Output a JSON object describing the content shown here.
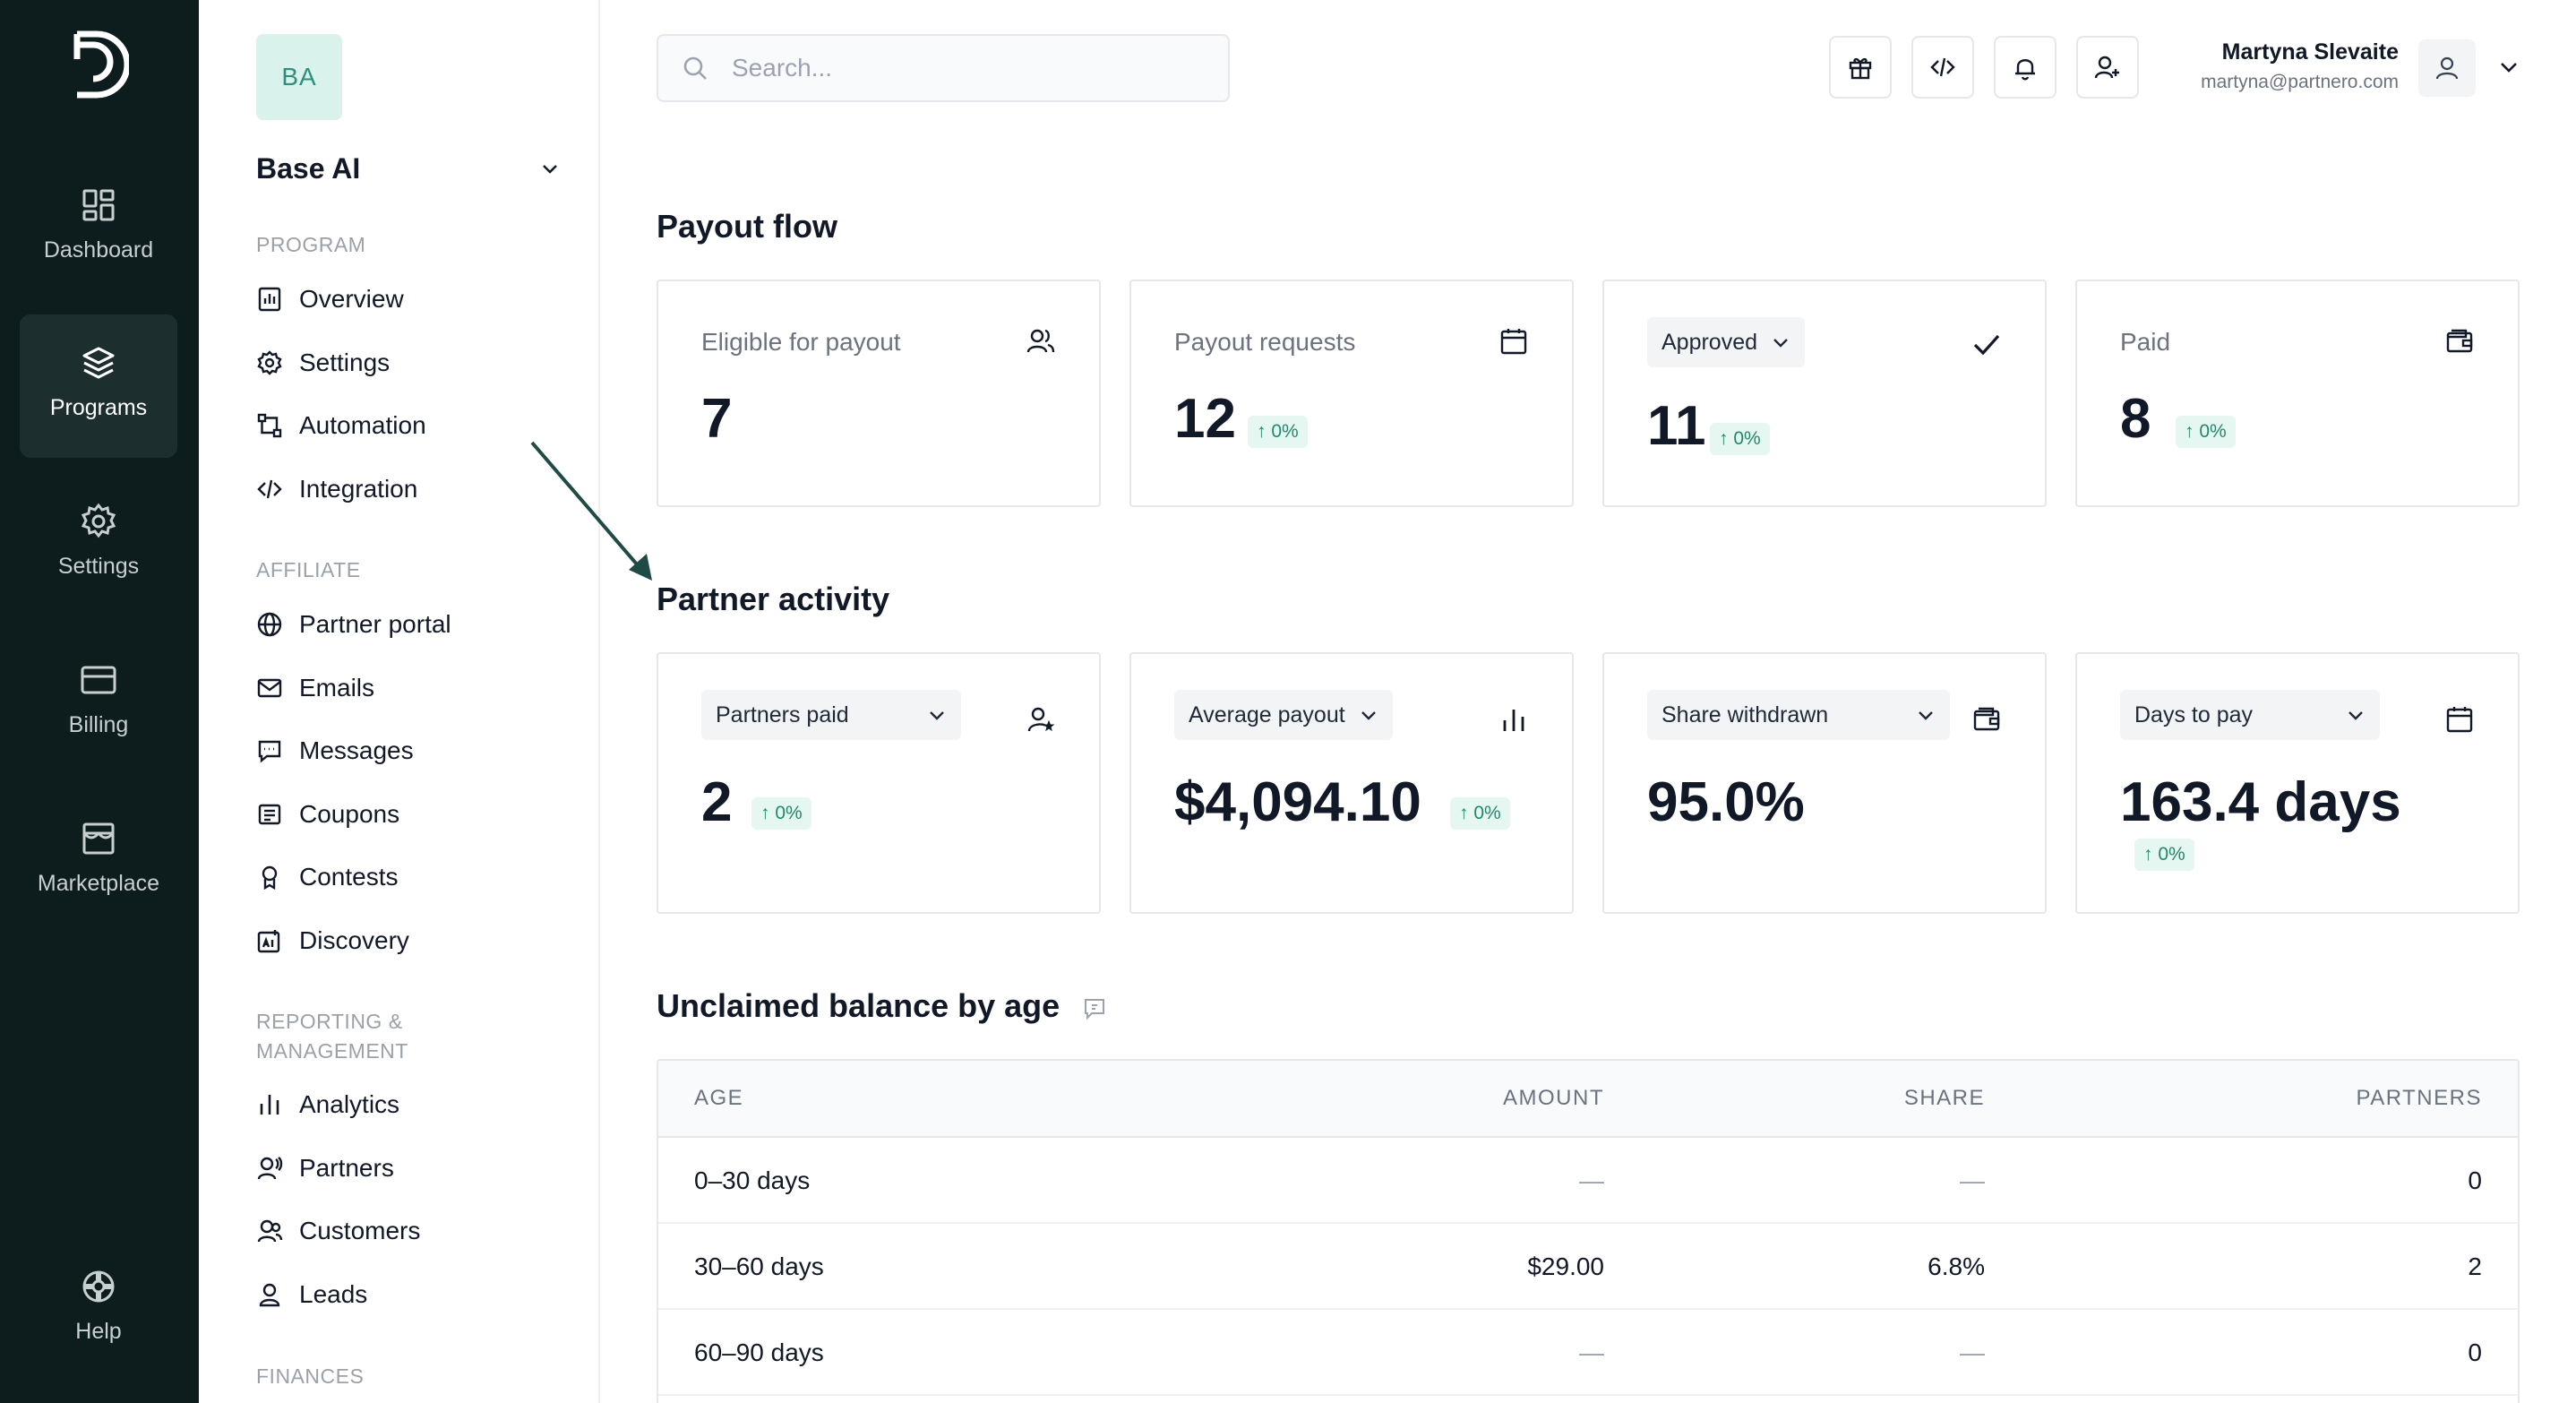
{
  "rail": {
    "items": [
      {
        "label": "Dashboard"
      },
      {
        "label": "Programs"
      },
      {
        "label": "Settings"
      },
      {
        "label": "Billing"
      },
      {
        "label": "Marketplace"
      }
    ],
    "help_label": "Help"
  },
  "sidebar": {
    "avatar_initials": "BA",
    "program_name": "Base AI",
    "sections": {
      "program": "PROGRAM",
      "affiliate": "AFFILIATE",
      "reporting_line1": "REPORTING &",
      "reporting_line2": "MANAGEMENT",
      "finances": "FINANCES"
    },
    "items": {
      "overview": "Overview",
      "settings": "Settings",
      "automation": "Automation",
      "integration": "Integration",
      "partner_portal": "Partner portal",
      "emails": "Emails",
      "messages": "Messages",
      "coupons": "Coupons",
      "contests": "Contests",
      "discovery": "Discovery",
      "analytics": "Analytics",
      "partners": "Partners",
      "customers": "Customers",
      "leads": "Leads"
    }
  },
  "header": {
    "search_placeholder": "Search...",
    "user_name": "Martyna Slevaite",
    "user_email": "martyna@partnero.com"
  },
  "payout_flow": {
    "title": "Payout flow",
    "cards": [
      {
        "label": "Eligible for payout",
        "value": "7",
        "icon": "users-icon"
      },
      {
        "label": "Payout requests",
        "value": "12",
        "change": "↑ 0%",
        "icon": "calendar-icon"
      },
      {
        "label": "Approved",
        "value": "11",
        "change": "↑ 0%",
        "icon": "check-icon"
      },
      {
        "label": "Paid",
        "value": "8",
        "change": "↑ 0%",
        "icon": "wallet-icon"
      }
    ]
  },
  "partner_activity": {
    "title": "Partner activity",
    "cards": [
      {
        "label": "Partners paid",
        "value": "2",
        "change": "↑ 0%",
        "icon": "user-star-icon"
      },
      {
        "label": "Average payout",
        "value": "$4,094.10",
        "change": "↑ 0%",
        "icon": "bar-chart-icon"
      },
      {
        "label": "Share withdrawn",
        "value": "95.0%",
        "icon": "wallet-icon"
      },
      {
        "label": "Days to pay",
        "value": "163.4 days",
        "change": "↑ 0%",
        "icon": "calendar-icon"
      }
    ]
  },
  "unclaimed": {
    "title": "Unclaimed balance by age",
    "columns": [
      "AGE",
      "AMOUNT",
      "SHARE",
      "PARTNERS"
    ],
    "rows": [
      {
        "age": "0–30 days",
        "amount": "—",
        "share": "—",
        "partners": "0"
      },
      {
        "age": "30–60 days",
        "amount": "$29.00",
        "share": "6.8%",
        "partners": "2"
      },
      {
        "age": "60–90 days",
        "amount": "—",
        "share": "—",
        "partners": "0"
      }
    ]
  }
}
